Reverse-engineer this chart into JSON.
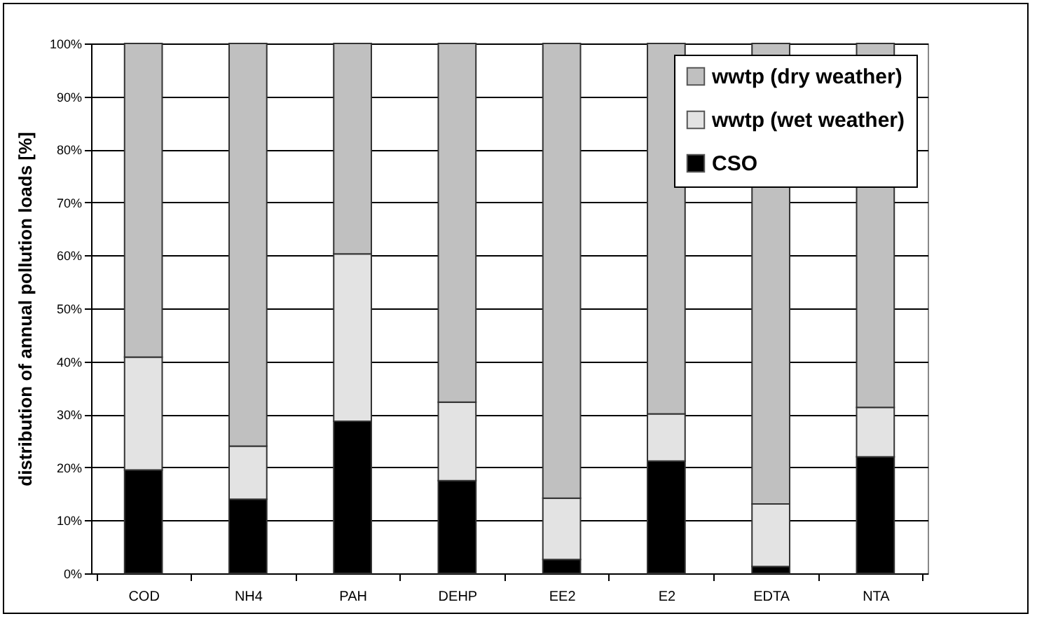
{
  "chart_data": {
    "type": "bar",
    "stacked": true,
    "ylabel": "distribution of annual pollution loads  [%]",
    "categories": [
      "COD",
      "NH4",
      "PAH",
      "DEHP",
      "EE2",
      "E2",
      "EDTA",
      "NTA"
    ],
    "series": [
      {
        "name": "CSO",
        "color": "#000000",
        "values": [
          19.5,
          14,
          28.7,
          17.5,
          2.6,
          21.2,
          1.3,
          22
        ]
      },
      {
        "name": "wwtp (wet weather)",
        "color": "#e3e3e3",
        "values": [
          21.3,
          10,
          31.6,
          14.8,
          11.6,
          8.9,
          11.8,
          9.3
        ]
      },
      {
        "name": "wwtp (dry weather)",
        "color": "#c0c0c0",
        "values": [
          59.2,
          76,
          39.7,
          67.7,
          85.8,
          69.9,
          86.9,
          68.7
        ]
      }
    ],
    "ylim": [
      0,
      100
    ],
    "yticks": [
      {
        "value": 0,
        "label": "0%"
      },
      {
        "value": 10,
        "label": "10%"
      },
      {
        "value": 20,
        "label": "20%"
      },
      {
        "value": 30,
        "label": "30%"
      },
      {
        "value": 40,
        "label": "40%"
      },
      {
        "value": 50,
        "label": "50%"
      },
      {
        "value": 60,
        "label": "60%"
      },
      {
        "value": 70,
        "label": "70%"
      },
      {
        "value": 80,
        "label": "80%"
      },
      {
        "value": 90,
        "label": "90%"
      },
      {
        "value": 100,
        "label": "100%"
      }
    ],
    "grid": "y",
    "legend": "top right"
  }
}
